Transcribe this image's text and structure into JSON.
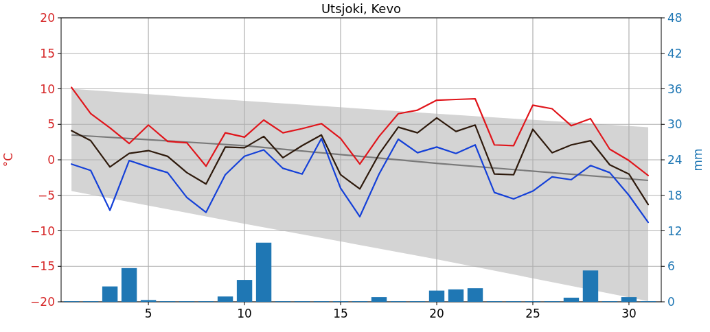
{
  "chart_data": {
    "type": "line",
    "title": "Utsjoki, Kevo",
    "ylabel": "°C",
    "y2label": "mm",
    "x": [
      1,
      2,
      3,
      4,
      5,
      6,
      7,
      8,
      9,
      10,
      11,
      12,
      13,
      14,
      15,
      16,
      17,
      18,
      19,
      20,
      21,
      22,
      23,
      24,
      25,
      26,
      27,
      28,
      29,
      30,
      31
    ],
    "xlim": [
      0.46,
      31.68
    ],
    "xticks": [
      5,
      10,
      15,
      20,
      25,
      30
    ],
    "ylim": [
      -20,
      20
    ],
    "yticks": [
      -20,
      -15,
      -10,
      -5,
      0,
      5,
      10,
      15,
      20
    ],
    "y2lim": [
      0,
      48
    ],
    "y2ticks": [
      0,
      6,
      12,
      18,
      24,
      30,
      36,
      42,
      48
    ],
    "grid": true,
    "series": [
      {
        "type": "bar",
        "axis": "y2",
        "color": "#1f77b4",
        "values": [
          0.1,
          0.1,
          2.6,
          5.7,
          0.3,
          0.1,
          0.1,
          0.1,
          0.9,
          3.7,
          10.0,
          0.1,
          0.1,
          0.1,
          0.1,
          0.1,
          0.8,
          0.1,
          0.1,
          1.9,
          2.1,
          2.3,
          0.1,
          0.1,
          0.1,
          0.1,
          0.7,
          5.3,
          0.1,
          0.8,
          0.1
        ]
      },
      {
        "color": "#7a7a7a",
        "x": [
          1,
          10,
          20,
          31
        ],
        "values": [
          3.5,
          2.0,
          -0.5,
          -2.9
        ],
        "lower": [
          -4.4,
          -9.0,
          -14.0,
          -19.9
        ],
        "upper": [
          10.0,
          8.3,
          6.5,
          4.6
        ]
      },
      {
        "color": "#e0151b",
        "values": [
          10.2,
          6.5,
          4.5,
          2.3,
          4.9,
          2.6,
          2.4,
          -0.9,
          3.8,
          3.2,
          5.6,
          3.8,
          4.4,
          5.1,
          3.0,
          -0.6,
          3.3,
          6.5,
          7.0,
          8.4,
          8.5,
          8.6,
          2.1,
          2.0,
          7.7,
          7.2,
          4.8,
          5.8,
          1.5,
          -0.1,
          -2.2
        ]
      },
      {
        "color": "#2e1a0c",
        "values": [
          4.1,
          2.7,
          -1.0,
          0.9,
          1.3,
          0.5,
          -1.8,
          -3.4,
          1.8,
          1.7,
          3.3,
          0.3,
          2.0,
          3.5,
          -2.1,
          -4.1,
          0.8,
          4.6,
          3.8,
          5.9,
          4.0,
          4.9,
          -2.0,
          -2.1,
          4.3,
          1.0,
          2.1,
          2.7,
          -0.7,
          -2.0,
          -6.3
        ]
      },
      {
        "color": "#1440d8",
        "values": [
          -0.6,
          -1.5,
          -7.1,
          -0.1,
          -1.0,
          -1.8,
          -5.3,
          -7.4,
          -2.1,
          0.5,
          1.4,
          -1.2,
          -2.0,
          3.0,
          -4.0,
          -8.0,
          -2.0,
          2.9,
          1.0,
          1.8,
          0.9,
          2.1,
          -4.6,
          -5.5,
          -4.4,
          -2.4,
          -2.8,
          -0.8,
          -1.8,
          -5.0,
          -8.8
        ]
      }
    ]
  }
}
